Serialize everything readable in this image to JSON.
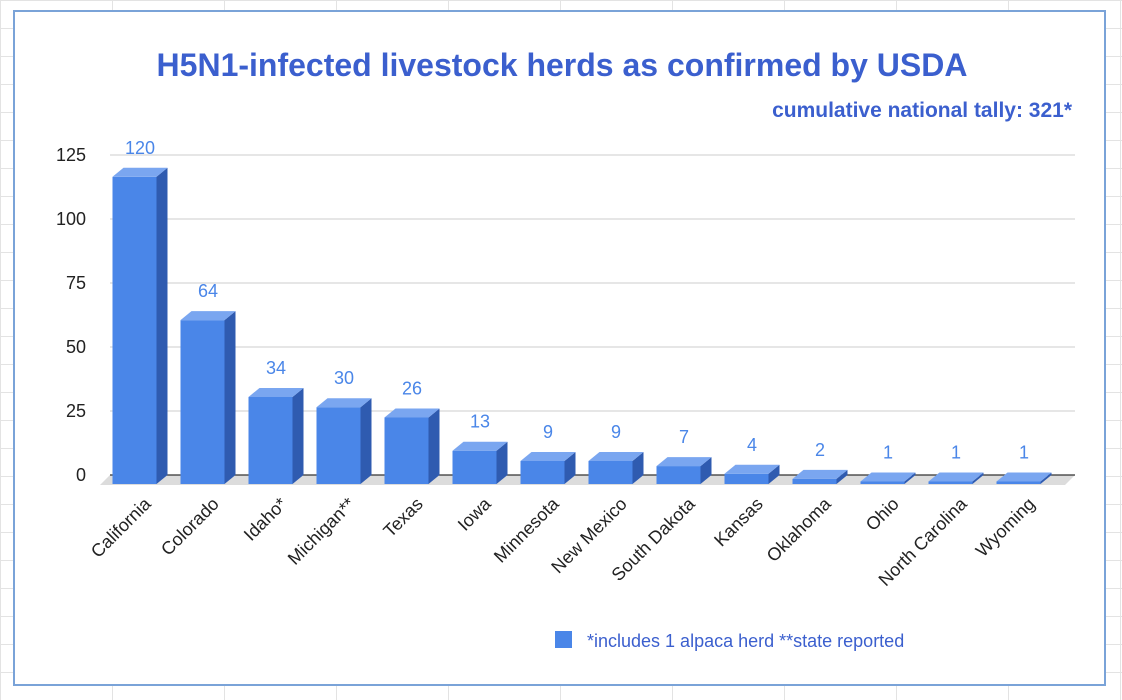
{
  "chart_data": {
    "type": "bar",
    "title": "H5N1-infected livestock herds as confirmed by USDA",
    "subtitle": "cumulative national tally: 321*",
    "categories": [
      "California",
      "Colorado",
      "Idaho*",
      "Michigan**",
      "Texas",
      "Iowa",
      "Minnesota",
      "New Mexico",
      "South Dakota",
      "Kansas",
      "Oklahoma",
      "Ohio",
      "North Carolina",
      "Wyoming"
    ],
    "values": [
      120,
      64,
      34,
      30,
      26,
      13,
      9,
      9,
      7,
      4,
      2,
      1,
      1,
      1
    ],
    "yticks": [
      0,
      25,
      50,
      75,
      100,
      125
    ],
    "ylim": [
      0,
      125
    ],
    "grid": true,
    "legend": {
      "position": "bottom-right",
      "text": "*includes 1 alpaca herd **state reported"
    },
    "colors": {
      "front": "#4a86e8",
      "side": "#2f5bb0",
      "top": "#7aa6f0",
      "label": "#4a86e8",
      "title": "#3b5fce"
    }
  }
}
